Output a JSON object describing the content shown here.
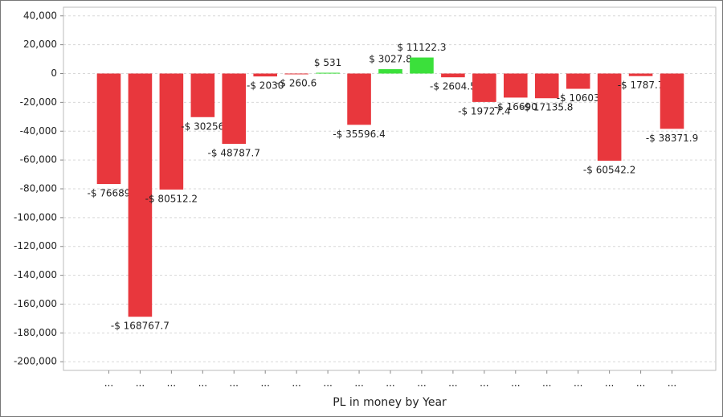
{
  "chart_data": {
    "type": "bar",
    "x_label": "PL in money by Year",
    "categories": [
      "...",
      "...",
      "...",
      "...",
      "...",
      "...",
      "...",
      "...",
      "...",
      "...",
      "...",
      "...",
      "...",
      "...",
      "...",
      "...",
      "...",
      "...",
      "..."
    ],
    "values": [
      -76689,
      -168767.7,
      -80512.2,
      -30256,
      -48787.7,
      -2030,
      -260.6,
      531,
      -35596.4,
      3027.8,
      11122.3,
      -2604.5,
      -19727.4,
      -16690,
      -17135.8,
      -10603,
      -60542.2,
      -1787.7,
      -38371.9
    ],
    "value_labels": [
      "-$ 76689",
      "-$ 168767.7",
      "-$ 80512.2",
      "-$ 30256",
      "-$ 48787.7",
      "-$ 2030",
      "-$ 260.6",
      "$ 531",
      "-$ 35596.4",
      "$ 3027.8",
      "$ 11122.3",
      "-$ 2604.5",
      "-$ 19727.4",
      "-$ 16690",
      "-$ 17135.8",
      "-$ 10603",
      "-$ 60542.2",
      "-$ 1787.7",
      "-$ 38371.9"
    ],
    "negative_color": "#e8373d",
    "positive_color": "#3be03b",
    "ylim": [
      -206000,
      46000
    ],
    "yticks": [
      {
        "value": 40000,
        "label": "40,000"
      },
      {
        "value": 20000,
        "label": "20,000"
      },
      0,
      {
        "value": -20000,
        "label": "-20,000"
      },
      {
        "value": -40000,
        "label": "-40,000"
      },
      {
        "value": -60000,
        "label": "-60,000"
      },
      {
        "value": -80000,
        "label": "-80,000"
      },
      {
        "value": -100000,
        "label": "-100,000"
      },
      {
        "value": -120000,
        "label": "-120,000"
      },
      {
        "value": -140000,
        "label": "-140,000"
      },
      {
        "value": -160000,
        "label": "-160,000"
      },
      {
        "value": -180000,
        "label": "-180,000"
      },
      {
        "value": -200000,
        "label": "-200,000"
      }
    ],
    "grid": true
  }
}
